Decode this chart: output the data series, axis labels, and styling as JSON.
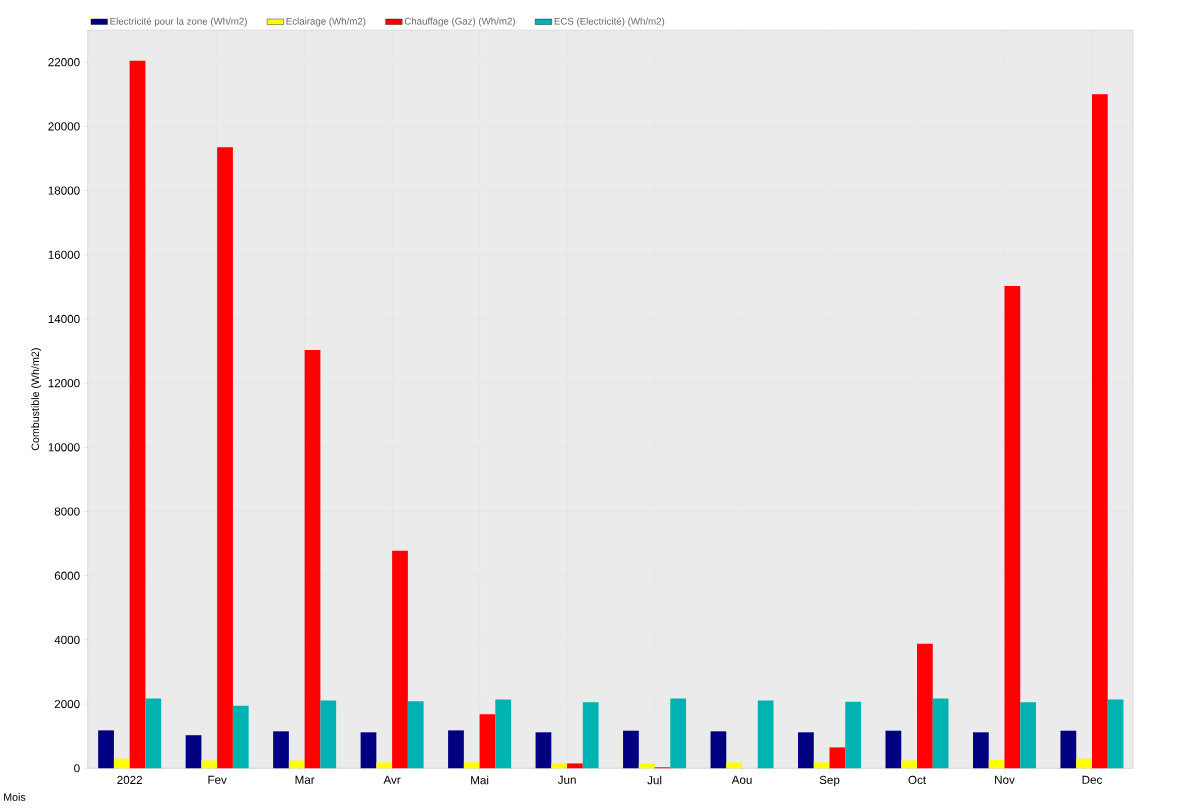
{
  "chart_data": {
    "type": "bar",
    "xlabel": "Mois",
    "ylabel": "Combustible (Wh/m2)",
    "categories": [
      "2022",
      "Fev",
      "Mar",
      "Avr",
      "Mai",
      "Jun",
      "Jul",
      "Aou",
      "Sep",
      "Oct",
      "Nov",
      "Dec"
    ],
    "series": [
      {
        "name": "Electricité pour la zone (Wh/m2)",
        "color": "#000080",
        "values": [
          1180,
          1030,
          1150,
          1120,
          1180,
          1120,
          1170,
          1150,
          1120,
          1170,
          1120,
          1170
        ]
      },
      {
        "name": "Eclairage (Wh/m2)",
        "color": "#ffff00",
        "values": [
          300,
          240,
          240,
          180,
          180,
          150,
          150,
          180,
          180,
          240,
          270,
          300
        ]
      },
      {
        "name": "Chauffage (Gaz) (Wh/m2)",
        "color": "#ff0000",
        "values": [
          22050,
          19350,
          13030,
          6780,
          1680,
          150,
          30,
          0,
          650,
          3880,
          15030,
          21000
        ]
      },
      {
        "name": "ECS (Electricité) (Wh/m2)",
        "color": "#00b2b2",
        "values": [
          2170,
          1950,
          2110,
          2090,
          2140,
          2060,
          2170,
          2110,
          2070,
          2170,
          2060,
          2140
        ]
      }
    ],
    "ylim": [
      0,
      23000
    ],
    "yticks": [
      0,
      2000,
      4000,
      6000,
      8000,
      10000,
      12000,
      14000,
      16000,
      18000,
      20000,
      22000
    ],
    "grid": true,
    "legend": "top"
  }
}
